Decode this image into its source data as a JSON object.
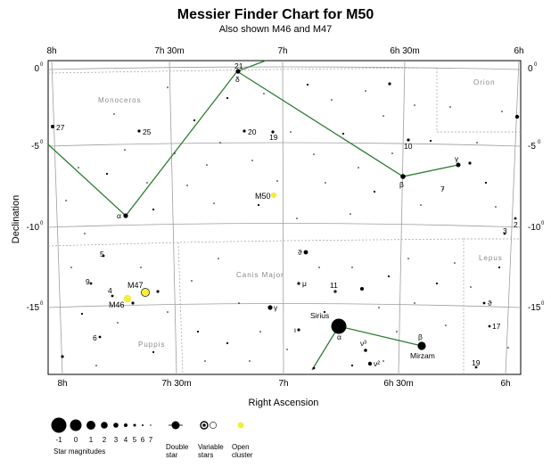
{
  "header": {
    "title": "Messier Finder Chart for M50",
    "subtitle": "Also shown M46 and M47"
  },
  "axes": {
    "ra_ticks": [
      "8h",
      "7h 30m",
      "7h",
      "6h 30m",
      "6h"
    ],
    "dec_ticks": [
      "0",
      "-5",
      "-10",
      "-15"
    ],
    "degree_mark": "0",
    "xlabel": "Right Ascension",
    "ylabel": "Declination"
  },
  "constellations": [
    {
      "name": "Monoceros"
    },
    {
      "name": "Orion"
    },
    {
      "name": "Canis Major"
    },
    {
      "name": "Lepus"
    },
    {
      "name": "Puppis"
    }
  ],
  "star_labels": [
    "27",
    "25",
    "21",
    "δ",
    "20",
    "19",
    "10",
    "γ",
    "β",
    "7",
    "α",
    "2",
    "3",
    "5",
    "9",
    "4",
    "6",
    "ϑ",
    "μ",
    "11",
    "γ",
    "Sirius",
    "α",
    "ι",
    "β",
    "Mirzam",
    "ϑ",
    "17",
    "ν³",
    "ν²",
    "19"
  ],
  "objects": [
    {
      "label": "M50"
    },
    {
      "label": "M47"
    },
    {
      "label": "M46"
    }
  ],
  "legend": {
    "magnitudes": [
      "-1",
      "0",
      "1",
      "2",
      "3",
      "4",
      "5",
      "6",
      "7"
    ],
    "magnitudes_label": "Star magnitudes",
    "double_star_label": "Double star",
    "variable_stars_label": "Variable stars",
    "open_cluster_label": "Open cluster"
  },
  "colors": {
    "constellation_lines": "#2e7d32",
    "cluster_fill": "#f2ee3a",
    "grid": "#9e9e9e",
    "label_grey": "#8a8a8a"
  }
}
